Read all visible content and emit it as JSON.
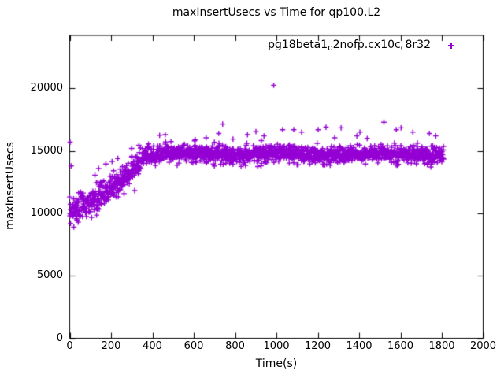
{
  "chart_data": {
    "type": "scatter",
    "title": "maxInsertUsecs vs Time for qp100.L2",
    "xlabel": "Time(s)",
    "ylabel": "maxInsertUsecs",
    "xlim": [
      0,
      2000
    ],
    "ylim": [
      0,
      24250
    ],
    "x_ticks": [
      0,
      200,
      400,
      600,
      800,
      1000,
      1200,
      1400,
      1600,
      1800,
      2000
    ],
    "y_ticks": [
      0,
      5000,
      10000,
      15000,
      20000
    ],
    "grid": false,
    "legend_position": "top-right-inside",
    "colors": {
      "background": "#ffffff",
      "axis": "#000000",
      "text": "#000000"
    },
    "series": [
      {
        "name_plain": "pg18beta1_o2nofp.cx10c_c8r32",
        "name_parts": [
          {
            "text": "pg18beta1",
            "sub": false
          },
          {
            "text": "o",
            "sub": true
          },
          {
            "text": "2nofp.cx10c",
            "sub": false
          },
          {
            "text": "c",
            "sub": true
          },
          {
            "text": "8r32",
            "sub": false
          }
        ],
        "marker": "plus",
        "color": "#9400D3",
        "summary": {
          "t_range_s": [
            0,
            1810
          ],
          "initial_value_range": [
            8700,
            12000
          ],
          "ramp": "values rise from ~10300 at t=0 to ~14700 by t=380s",
          "steady_state_mean": 14730,
          "steady_state_range": [
            13750,
            15500
          ],
          "notable_outlier": [
            987,
            20250
          ]
        },
        "points_spec": {
          "seed": 987654321,
          "t_min": 0,
          "t_max": 1809,
          "t_step": 1,
          "mean_curve": [
            [
              0,
              10300
            ],
            [
              50,
              10500
            ],
            [
              120,
              11050
            ],
            [
              200,
              12000
            ],
            [
              280,
              13100
            ],
            [
              360,
              14500
            ],
            [
              420,
              14760
            ],
            [
              1809,
              14730
            ]
          ],
          "sd_curve": [
            [
              0,
              620
            ],
            [
              120,
              560
            ],
            [
              300,
              500
            ],
            [
              400,
              335
            ],
            [
              1809,
              320
            ]
          ],
          "wiggle": {
            "start_t": 420,
            "amplitude": 90,
            "period": 500,
            "phase": 1.3
          },
          "outliers": [
            [
              2,
              15700
            ],
            [
              7,
              13800
            ],
            [
              20,
              8900
            ],
            [
              140,
              13600
            ],
            [
              175,
              13950
            ],
            [
              205,
              14150
            ],
            [
              233,
              14400
            ],
            [
              300,
              15200
            ],
            [
              335,
              15450
            ],
            [
              435,
              16250
            ],
            [
              462,
              16300
            ],
            [
              490,
              15750
            ],
            [
              607,
              15900
            ],
            [
              660,
              16050
            ],
            [
              721,
              16400
            ],
            [
              740,
              17150
            ],
            [
              790,
              15950
            ],
            [
              860,
              16300
            ],
            [
              901,
              16550
            ],
            [
              940,
              16200
            ],
            [
              987,
              20250
            ],
            [
              1030,
              16700
            ],
            [
              1084,
              16700
            ],
            [
              1122,
              16500
            ],
            [
              1202,
              16700
            ],
            [
              1240,
              16900
            ],
            [
              1282,
              16050
            ],
            [
              1313,
              16850
            ],
            [
              1389,
              16200
            ],
            [
              1404,
              16500
            ],
            [
              1439,
              16000
            ],
            [
              1520,
              17300
            ],
            [
              1580,
              16700
            ],
            [
              1603,
              16850
            ],
            [
              1660,
              16500
            ],
            [
              1740,
              16400
            ],
            [
              1771,
              16200
            ],
            [
              520,
              13850
            ],
            [
              700,
              13800
            ],
            [
              910,
              13750
            ],
            [
              1100,
              13900
            ],
            [
              1260,
              13850
            ],
            [
              1430,
              13950
            ],
            [
              1585,
              13850
            ],
            [
              1730,
              13900
            ]
          ]
        }
      }
    ]
  }
}
